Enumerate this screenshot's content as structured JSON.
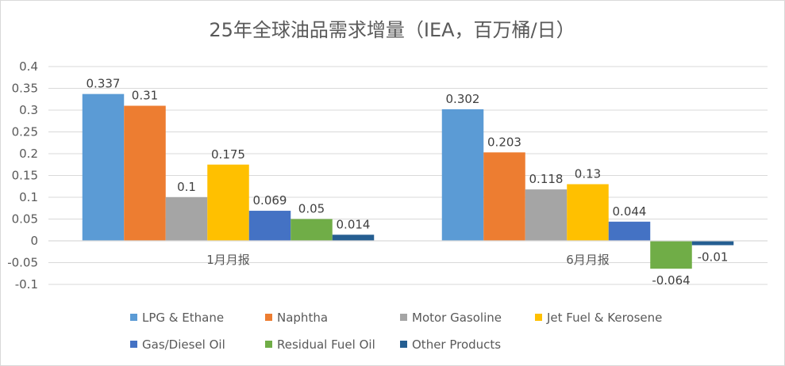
{
  "chart_data": {
    "type": "bar",
    "title": "25年全球油品需求增量（IEA，百万桶/日）",
    "categories": [
      "1月月报",
      "6月月报"
    ],
    "ylim": [
      -0.1,
      0.4
    ],
    "yticks": [
      "0.4",
      "0.35",
      "0.3",
      "0.25",
      "0.2",
      "0.15",
      "0.1",
      "0.05",
      "0",
      "-0.05",
      "-0.1"
    ],
    "yticks_values": [
      0.4,
      0.35,
      0.3,
      0.25,
      0.2,
      0.15,
      0.1,
      0.05,
      0,
      -0.05,
      -0.1
    ],
    "grid": true,
    "legend_position": "bottom",
    "series": [
      {
        "name": "LPG & Ethane",
        "color": "#5B9BD5",
        "values": [
          0.337,
          0.302
        ],
        "labels": [
          "0.337",
          "0.302"
        ]
      },
      {
        "name": "Naphtha",
        "color": "#ED7D31",
        "values": [
          0.31,
          0.203
        ],
        "labels": [
          "0.31",
          "0.203"
        ]
      },
      {
        "name": "Motor Gasoline",
        "color": "#A5A5A5",
        "values": [
          0.1,
          0.118
        ],
        "labels": [
          "0.1",
          "0.118"
        ]
      },
      {
        "name": "Jet Fuel & Kerosene",
        "color": "#FFC000",
        "values": [
          0.175,
          0.13
        ],
        "labels": [
          "0.175",
          "0.13"
        ]
      },
      {
        "name": "Gas/Diesel Oil",
        "color": "#4472C4",
        "values": [
          0.069,
          0.044
        ],
        "labels": [
          "0.069",
          "0.044"
        ]
      },
      {
        "name": "Residual Fuel Oil",
        "color": "#70AD47",
        "values": [
          0.05,
          -0.064
        ],
        "labels": [
          "0.05",
          "-0.064"
        ]
      },
      {
        "name": "Other Products",
        "color": "#255E91",
        "values": [
          0.014,
          -0.01
        ],
        "labels": [
          "0.014",
          "-0.01"
        ]
      }
    ]
  }
}
